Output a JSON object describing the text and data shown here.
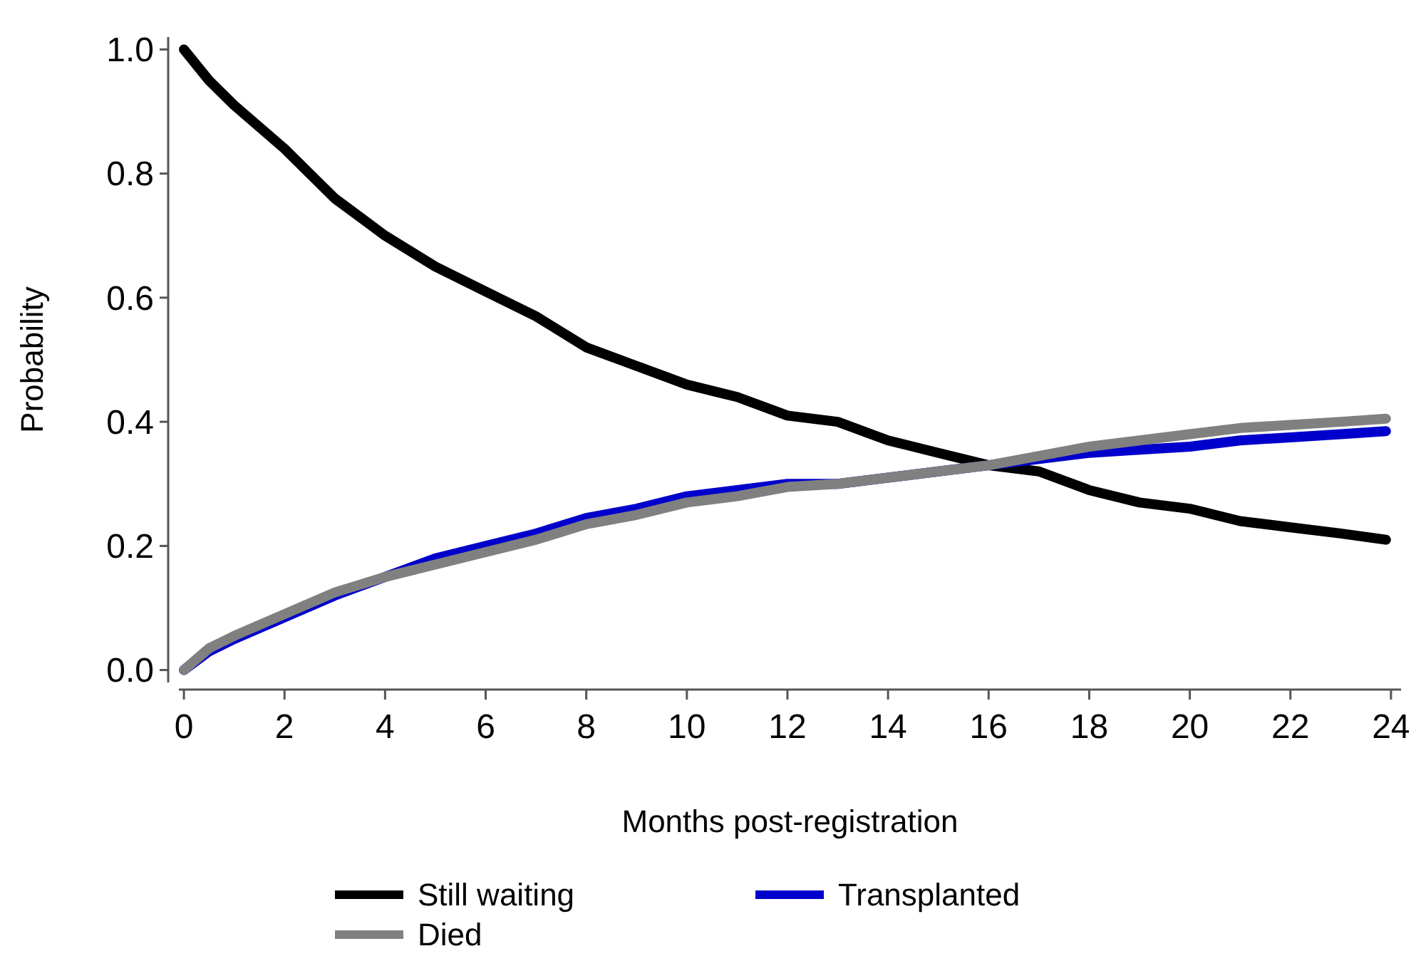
{
  "chart_data": {
    "type": "line",
    "xlabel": "Months post-registration",
    "ylabel": "Probability",
    "x": [
      0,
      0.5,
      1,
      2,
      3,
      4,
      5,
      6,
      7,
      8,
      9,
      10,
      11,
      12,
      13,
      14,
      15,
      16,
      17,
      18,
      19,
      20,
      21,
      22,
      23,
      23.9
    ],
    "xlim": [
      -0.1,
      24.2
    ],
    "xticks": [
      0,
      2,
      4,
      6,
      8,
      10,
      12,
      14,
      16,
      18,
      20,
      22,
      24
    ],
    "ylim": [
      -0.02,
      1.02
    ],
    "yticks": [
      {
        "value": 0,
        "label": "0.0"
      },
      0.2,
      0.4,
      0.6,
      0.8,
      {
        "value": 1,
        "label": "1.0"
      }
    ],
    "grid": false,
    "legend": "bottom",
    "line_style": "solid",
    "marker": "none",
    "series": [
      {
        "name": "Still waiting",
        "color": "#000000",
        "values": [
          1.0,
          0.95,
          0.91,
          0.84,
          0.76,
          0.7,
          0.65,
          0.61,
          0.57,
          0.52,
          0.49,
          0.46,
          0.44,
          0.41,
          0.4,
          0.37,
          0.35,
          0.33,
          0.32,
          0.29,
          0.27,
          0.26,
          0.24,
          0.23,
          0.22,
          0.21
        ]
      },
      {
        "name": "Transplanted",
        "color": "#0000cc",
        "values": [
          0,
          0.03,
          0.05,
          0.085,
          0.12,
          0.15,
          0.18,
          0.2,
          0.22,
          0.245,
          0.26,
          0.28,
          0.29,
          0.3,
          0.3,
          0.31,
          0.32,
          0.33,
          0.34,
          0.35,
          0.355,
          0.36,
          0.37,
          0.375,
          0.38,
          0.385
        ]
      },
      {
        "name": "Died",
        "color": "#808080",
        "values": [
          0,
          0.035,
          0.055,
          0.09,
          0.125,
          0.15,
          0.17,
          0.19,
          0.21,
          0.235,
          0.25,
          0.27,
          0.28,
          0.295,
          0.3,
          0.31,
          0.32,
          0.33,
          0.345,
          0.36,
          0.37,
          0.38,
          0.39,
          0.395,
          0.4,
          0.405
        ]
      }
    ]
  }
}
